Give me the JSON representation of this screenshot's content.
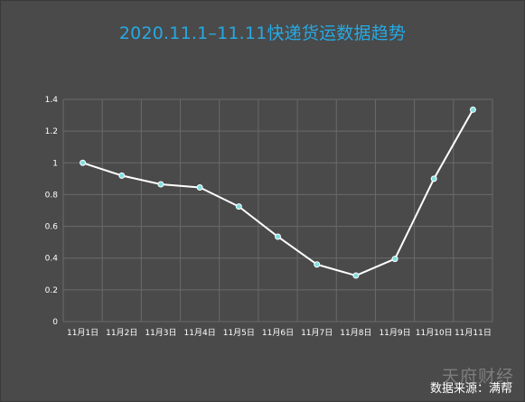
{
  "title": "2020.11.1–11.11快递货运数据趋势",
  "source": "数据来源：满帮",
  "watermark": "天府财经",
  "chart_data": {
    "type": "line",
    "title": "2020.11.1–11.11快递货运数据趋势",
    "categories": [
      "11月1日",
      "11月2日",
      "11月3日",
      "11月4日",
      "11月5日",
      "11月6日",
      "11月7日",
      "11月8日",
      "11月9日",
      "11月10日",
      "11月11日"
    ],
    "series": [
      {
        "values": [
          1.0,
          0.92,
          0.865,
          0.845,
          0.725,
          0.535,
          0.36,
          0.29,
          0.395,
          0.9,
          1.335
        ]
      }
    ],
    "ylim": [
      0,
      1.4
    ],
    "yticks": [
      0,
      0.2,
      0.4,
      0.6,
      0.8,
      1,
      1.2,
      1.4
    ],
    "grid": true,
    "colors": {
      "line": "#ffffff",
      "marker": "#7fe0e0",
      "grid": "#6a6a6a",
      "title": "#27a9e3"
    }
  }
}
